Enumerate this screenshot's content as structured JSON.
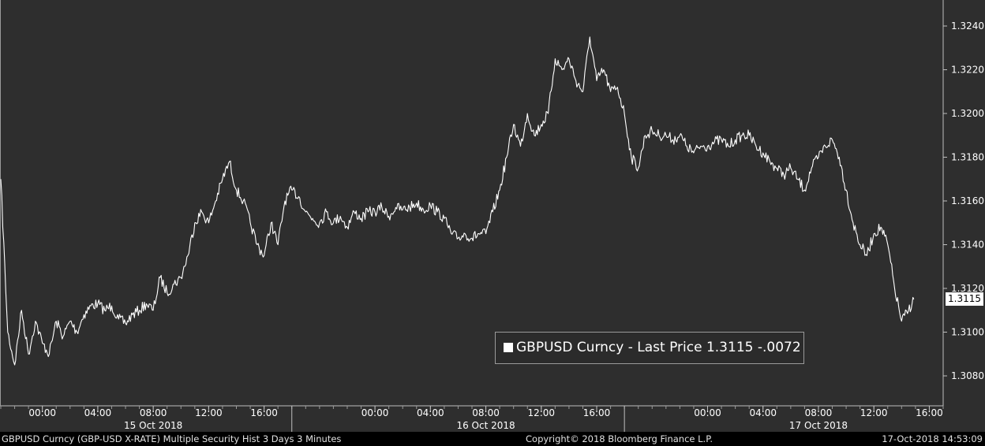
{
  "chart_data": {
    "type": "line",
    "series": [
      {
        "name": "GBPUSD Curncy",
        "color": "#ffffff",
        "points": [
          [
            "14-Oct-2018 21:00",
            1.317
          ],
          [
            "14-Oct-2018 21:30",
            1.31
          ],
          [
            "14-Oct-2018 22:00",
            1.3085
          ],
          [
            "14-Oct-2018 22:30",
            1.311
          ],
          [
            "14-Oct-2018 23:00",
            1.309
          ],
          [
            "14-Oct-2018 23:30",
            1.3105
          ],
          [
            "15-Oct-2018 00:00",
            1.3095
          ],
          [
            "15-Oct-2018 00:30",
            1.309
          ],
          [
            "15-Oct-2018 01:00",
            1.3105
          ],
          [
            "15-Oct-2018 01:30",
            1.3098
          ],
          [
            "15-Oct-2018 02:00",
            1.3105
          ],
          [
            "15-Oct-2018 02:30",
            1.31
          ],
          [
            "15-Oct-2018 03:00",
            1.3108
          ],
          [
            "15-Oct-2018 03:30",
            1.3112
          ],
          [
            "15-Oct-2018 04:00",
            1.3113
          ],
          [
            "15-Oct-2018 04:30",
            1.311
          ],
          [
            "15-Oct-2018 05:00",
            1.3112
          ],
          [
            "15-Oct-2018 05:30",
            1.3106
          ],
          [
            "15-Oct-2018 06:00",
            1.3104
          ],
          [
            "15-Oct-2018 06:30",
            1.3108
          ],
          [
            "15-Oct-2018 07:00",
            1.311
          ],
          [
            "15-Oct-2018 07:30",
            1.3113
          ],
          [
            "15-Oct-2018 08:00",
            1.311
          ],
          [
            "15-Oct-2018 08:30",
            1.3125
          ],
          [
            "15-Oct-2018 09:00",
            1.3118
          ],
          [
            "15-Oct-2018 09:30",
            1.3122
          ],
          [
            "15-Oct-2018 10:00",
            1.3125
          ],
          [
            "15-Oct-2018 10:30",
            1.3135
          ],
          [
            "15-Oct-2018 11:00",
            1.315
          ],
          [
            "15-Oct-2018 11:30",
            1.3155
          ],
          [
            "15-Oct-2018 12:00",
            1.315
          ],
          [
            "15-Oct-2018 12:30",
            1.316
          ],
          [
            "15-Oct-2018 13:00",
            1.317
          ],
          [
            "15-Oct-2018 13:30",
            1.3178
          ],
          [
            "15-Oct-2018 14:00",
            1.3165
          ],
          [
            "15-Oct-2018 14:30",
            1.316
          ],
          [
            "15-Oct-2018 15:00",
            1.315
          ],
          [
            "15-Oct-2018 15:30",
            1.314
          ],
          [
            "15-Oct-2018 16:00",
            1.3135
          ],
          [
            "15-Oct-2018 16:30",
            1.315
          ],
          [
            "15-Oct-2018 17:00",
            1.314
          ],
          [
            "15-Oct-2018 17:30",
            1.316
          ],
          [
            "15-Oct-2018 18:00",
            1.3165
          ],
          [
            "15-Oct-2018 18:30",
            1.3162
          ],
          [
            "15-Oct-2018 19:00",
            1.3155
          ],
          [
            "15-Oct-2018 19:30",
            1.3152
          ],
          [
            "15-Oct-2018 20:00",
            1.315
          ],
          [
            "15-Oct-2018 20:30",
            1.3155
          ],
          [
            "15-Oct-2018 21:00",
            1.315
          ],
          [
            "15-Oct-2018 21:30",
            1.3153
          ],
          [
            "15-Oct-2018 22:00",
            1.3148
          ],
          [
            "15-Oct-2018 22:30",
            1.3155
          ],
          [
            "15-Oct-2018 23:00",
            1.3152
          ],
          [
            "15-Oct-2018 23:30",
            1.3155
          ],
          [
            "16-Oct-2018 00:00",
            1.3155
          ],
          [
            "16-Oct-2018 00:30",
            1.3157
          ],
          [
            "16-Oct-2018 01:00",
            1.3153
          ],
          [
            "16-Oct-2018 01:30",
            1.3157
          ],
          [
            "16-Oct-2018 02:00",
            1.3156
          ],
          [
            "16-Oct-2018 02:30",
            1.3157
          ],
          [
            "16-Oct-2018 03:00",
            1.3159
          ],
          [
            "16-Oct-2018 03:30",
            1.3156
          ],
          [
            "16-Oct-2018 04:00",
            1.3158
          ],
          [
            "16-Oct-2018 04:30",
            1.3155
          ],
          [
            "16-Oct-2018 05:00",
            1.3152
          ],
          [
            "16-Oct-2018 05:30",
            1.3145
          ],
          [
            "16-Oct-2018 06:00",
            1.3143
          ],
          [
            "16-Oct-2018 06:30",
            1.3145
          ],
          [
            "16-Oct-2018 07:00",
            1.3143
          ],
          [
            "16-Oct-2018 07:30",
            1.3145
          ],
          [
            "16-Oct-2018 08:00",
            1.3145
          ],
          [
            "16-Oct-2018 08:30",
            1.3155
          ],
          [
            "16-Oct-2018 09:00",
            1.3165
          ],
          [
            "16-Oct-2018 09:30",
            1.318
          ],
          [
            "16-Oct-2018 10:00",
            1.3195
          ],
          [
            "16-Oct-2018 10:30",
            1.3185
          ],
          [
            "16-Oct-2018 11:00",
            1.32
          ],
          [
            "16-Oct-2018 11:30",
            1.319
          ],
          [
            "16-Oct-2018 12:00",
            1.3195
          ],
          [
            "16-Oct-2018 12:30",
            1.32
          ],
          [
            "16-Oct-2018 13:00",
            1.3225
          ],
          [
            "16-Oct-2018 13:30",
            1.322
          ],
          [
            "16-Oct-2018 14:00",
            1.3225
          ],
          [
            "16-Oct-2018 14:30",
            1.3215
          ],
          [
            "16-Oct-2018 15:00",
            1.321
          ],
          [
            "16-Oct-2018 15:30",
            1.3235
          ],
          [
            "16-Oct-2018 16:00",
            1.3215
          ],
          [
            "16-Oct-2018 16:30",
            1.322
          ],
          [
            "16-Oct-2018 17:00",
            1.321
          ],
          [
            "16-Oct-2018 17:30",
            1.3212
          ],
          [
            "16-Oct-2018 18:00",
            1.32
          ],
          [
            "16-Oct-2018 18:30",
            1.318
          ],
          [
            "16-Oct-2018 19:00",
            1.3175
          ],
          [
            "16-Oct-2018 19:30",
            1.319
          ],
          [
            "16-Oct-2018 20:00",
            1.3192
          ],
          [
            "16-Oct-2018 20:30",
            1.319
          ],
          [
            "16-Oct-2018 21:00",
            1.319
          ],
          [
            "16-Oct-2018 21:30",
            1.3188
          ],
          [
            "16-Oct-2018 22:00",
            1.319
          ],
          [
            "16-Oct-2018 22:30",
            1.3185
          ],
          [
            "16-Oct-2018 23:00",
            1.3182
          ],
          [
            "16-Oct-2018 23:30",
            1.3185
          ],
          [
            "17-Oct-2018 00:00",
            1.3185
          ],
          [
            "17-Oct-2018 00:30",
            1.3187
          ],
          [
            "17-Oct-2018 01:00",
            1.3188
          ],
          [
            "17-Oct-2018 01:30",
            1.3185
          ],
          [
            "17-Oct-2018 02:00",
            1.3188
          ],
          [
            "17-Oct-2018 02:30",
            1.319
          ],
          [
            "17-Oct-2018 03:00",
            1.319
          ],
          [
            "17-Oct-2018 03:30",
            1.3185
          ],
          [
            "17-Oct-2018 04:00",
            1.3182
          ],
          [
            "17-Oct-2018 04:30",
            1.3178
          ],
          [
            "17-Oct-2018 05:00",
            1.3175
          ],
          [
            "17-Oct-2018 05:30",
            1.3172
          ],
          [
            "17-Oct-2018 06:00",
            1.3175
          ],
          [
            "17-Oct-2018 06:30",
            1.317
          ],
          [
            "17-Oct-2018 07:00",
            1.3165
          ],
          [
            "17-Oct-2018 07:30",
            1.3175
          ],
          [
            "17-Oct-2018 08:00",
            1.318
          ],
          [
            "17-Oct-2018 08:30",
            1.3185
          ],
          [
            "17-Oct-2018 09:00",
            1.3188
          ],
          [
            "17-Oct-2018 09:30",
            1.318
          ],
          [
            "17-Oct-2018 10:00",
            1.3165
          ],
          [
            "17-Oct-2018 10:30",
            1.315
          ],
          [
            "17-Oct-2018 11:00",
            1.314
          ],
          [
            "17-Oct-2018 11:30",
            1.3135
          ],
          [
            "17-Oct-2018 12:00",
            1.3145
          ],
          [
            "17-Oct-2018 12:30",
            1.3148
          ],
          [
            "17-Oct-2018 13:00",
            1.314
          ],
          [
            "17-Oct-2018 13:30",
            1.312
          ],
          [
            "17-Oct-2018 14:00",
            1.3105
          ],
          [
            "17-Oct-2018 14:30",
            1.311
          ],
          [
            "17-Oct-2018 14:53",
            1.3115
          ]
        ]
      }
    ],
    "ylim": [
      1.307,
      1.325
    ],
    "yticks": [
      "1.3080",
      "1.3100",
      "1.3120",
      "1.3140",
      "1.3160",
      "1.3180",
      "1.3200",
      "1.3220",
      "1.3240"
    ],
    "xlim": [
      "14-Oct-2018 21:00",
      "17-Oct-2018 17:00"
    ],
    "xticks": [
      {
        "t": "15-Oct-2018 00:00",
        "label": "00:00"
      },
      {
        "t": "15-Oct-2018 04:00",
        "label": "04:00"
      },
      {
        "t": "15-Oct-2018 08:00",
        "label": "08:00"
      },
      {
        "t": "15-Oct-2018 12:00",
        "label": "12:00"
      },
      {
        "t": "15-Oct-2018 16:00",
        "label": "16:00"
      },
      {
        "t": "16-Oct-2018 00:00",
        "label": "00:00"
      },
      {
        "t": "16-Oct-2018 04:00",
        "label": "04:00"
      },
      {
        "t": "16-Oct-2018 08:00",
        "label": "08:00"
      },
      {
        "t": "16-Oct-2018 12:00",
        "label": "12:00"
      },
      {
        "t": "16-Oct-2018 16:00",
        "label": "16:00"
      },
      {
        "t": "17-Oct-2018 00:00",
        "label": "00:00"
      },
      {
        "t": "17-Oct-2018 04:00",
        "label": "04:00"
      },
      {
        "t": "17-Oct-2018 08:00",
        "label": "08:00"
      },
      {
        "t": "17-Oct-2018 12:00",
        "label": "12:00"
      },
      {
        "t": "17-Oct-2018 16:00",
        "label": "16:00"
      }
    ],
    "day_labels": [
      {
        "t": "15-Oct-2018 08:00",
        "label": "15 Oct 2018"
      },
      {
        "t": "16-Oct-2018 08:00",
        "label": "16 Oct 2018"
      },
      {
        "t": "17-Oct-2018 08:00",
        "label": "17 Oct 2018"
      }
    ],
    "day_separators": [
      "15-Oct-2018 18:00",
      "16-Oct-2018 18:00"
    ],
    "last_price_label": "1.3115",
    "last_price": 1.3115,
    "grid": false,
    "background": "#2e2e2e",
    "line_color": "#ffffff"
  },
  "legend": {
    "text": "GBPUSD Curncy - Last Price 1.3115  -.0072"
  },
  "footer": {
    "left": "GBPUSD Curncy (GBP-USD X-RATE) Multiple Security Hist   3 Days 3 Minutes",
    "center": "Copyright© 2018 Bloomberg Finance L.P.",
    "right": "17-Oct-2018 14:53:09"
  }
}
